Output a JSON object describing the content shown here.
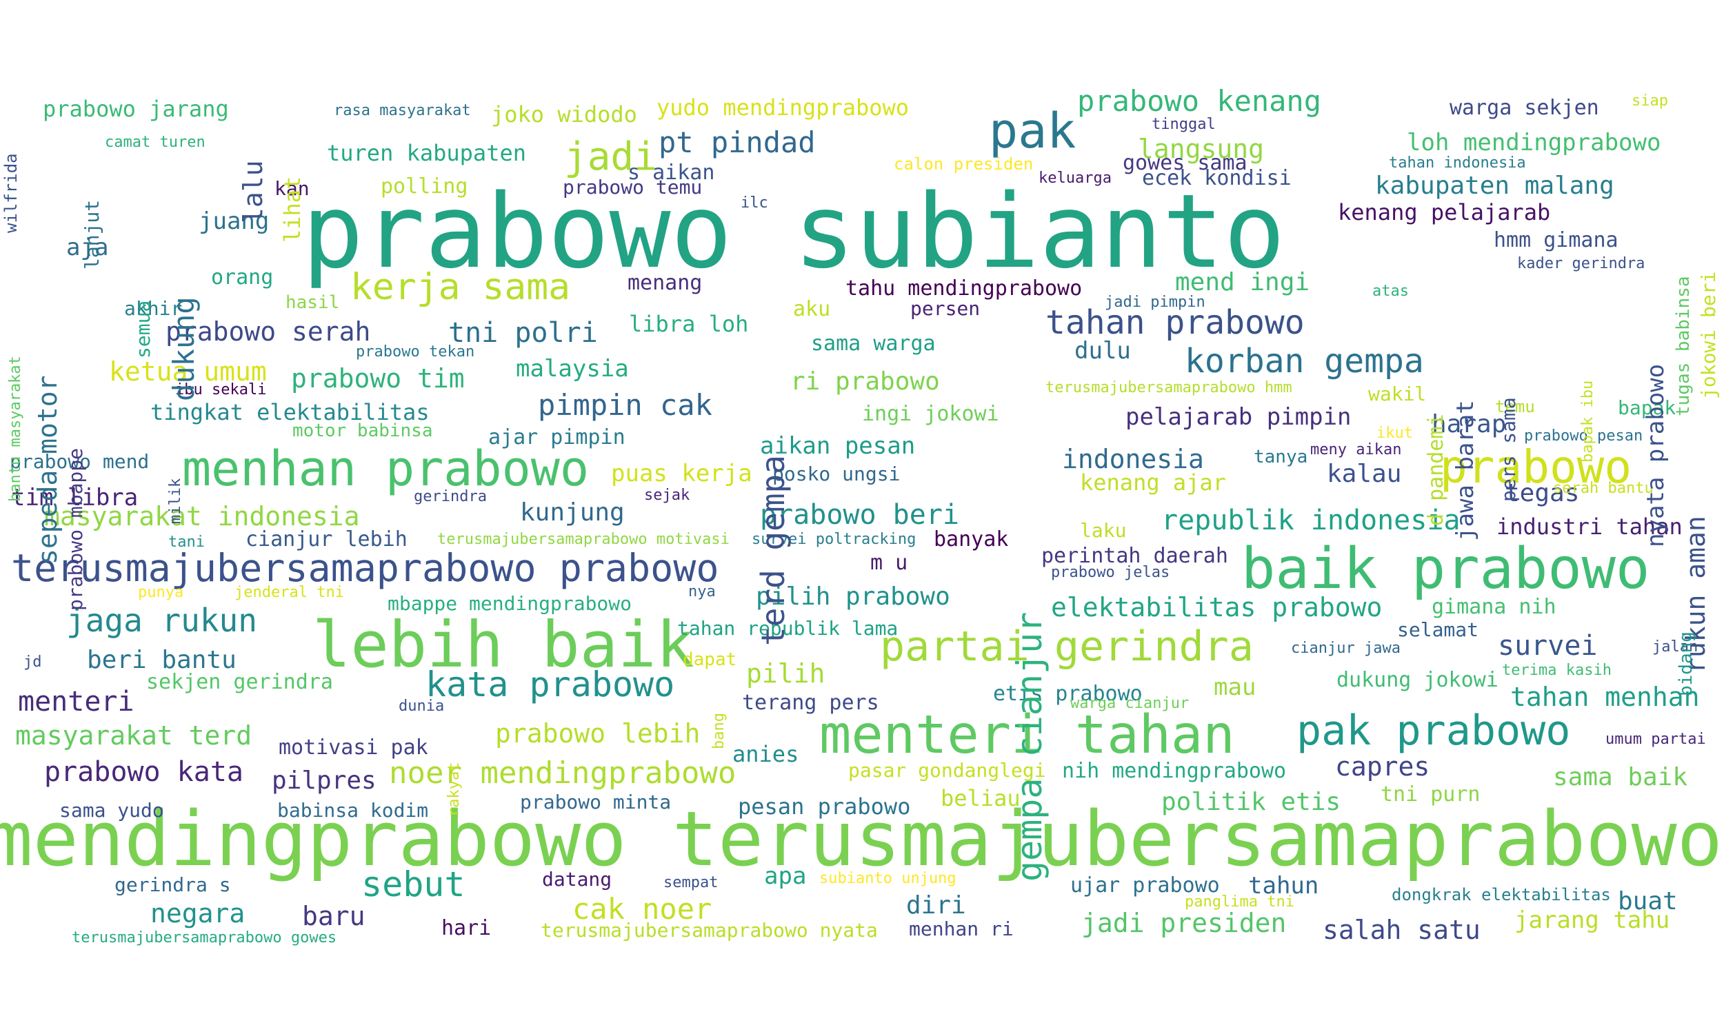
{
  "words": [
    {
      "text": "prabowo subianto",
      "color": "#22a384"
    },
    {
      "text": "mendingprabowo terusmajubersamaprabowo",
      "color": "#7ad151"
    },
    {
      "text": "baik prabowo",
      "color": "#3fbc73"
    },
    {
      "text": "lebih baik",
      "color": "#6ccd5a"
    },
    {
      "text": "menteri tahan",
      "color": "#5ec962"
    },
    {
      "text": "menhan prabowo",
      "color": "#4ac16d"
    },
    {
      "text": "terusmajubersamaprabowo prabowo",
      "color": "#3b528b"
    },
    {
      "text": "partai gerindra",
      "color": "#a0da39"
    },
    {
      "text": "pak prabowo",
      "color": "#1f988b"
    },
    {
      "text": "prabowo",
      "color": "#d0e11c"
    },
    {
      "text": "pak",
      "color": "#2a788e"
    },
    {
      "text": "kata prabowo",
      "color": "#21918c"
    },
    {
      "text": "kerja sama",
      "color": "#b5de2b"
    },
    {
      "text": "korban gempa",
      "color": "#2c728e"
    },
    {
      "text": "tahan prabowo",
      "color": "#3b528b"
    },
    {
      "text": "jaga rukun",
      "color": "#23898e"
    },
    {
      "text": "jadi",
      "color": "#a8db34"
    },
    {
      "text": "prabowo kenang",
      "color": "#35b779"
    },
    {
      "text": "pt pindad",
      "color": "#31688e"
    },
    {
      "text": "sebut",
      "color": "#20a486"
    },
    {
      "text": "noer mendingprabowo",
      "color": "#addc30"
    },
    {
      "text": "cak noer",
      "color": "#c2df23"
    },
    {
      "text": "republik indonesia",
      "color": "#1fa188"
    },
    {
      "text": "prabowo beri",
      "color": "#21918c"
    },
    {
      "text": "masyarakat indonesia",
      "color": "#90d743"
    },
    {
      "text": "tni polri",
      "color": "#2d708e"
    },
    {
      "text": "pimpin cak",
      "color": "#32658e"
    },
    {
      "text": "prabowo serah",
      "color": "#3e4989"
    },
    {
      "text": "langsung",
      "color": "#93d741"
    },
    {
      "text": "elektabilitas prabowo",
      "color": "#21a685"
    },
    {
      "text": "survei",
      "color": "#39568c"
    },
    {
      "text": "tahan menhan",
      "color": "#1f9e89"
    },
    {
      "text": "prabowo tim",
      "color": "#2eb37c"
    },
    {
      "text": "ketua umum",
      "color": "#d8e219"
    },
    {
      "text": "prabowo kata",
      "color": "#482878"
    },
    {
      "text": "masyarakat terd",
      "color": "#63cb5f"
    },
    {
      "text": "prabowo lebih",
      "color": "#b5de2b"
    },
    {
      "text": "jadi presiden",
      "color": "#54c568"
    },
    {
      "text": "salah satu",
      "color": "#3e4a89"
    },
    {
      "text": "capres",
      "color": "#414487"
    },
    {
      "text": "menteri",
      "color": "#472c7a"
    },
    {
      "text": "mend ingi",
      "color": "#3fbc73"
    },
    {
      "text": "kabupaten malang",
      "color": "#277f8e"
    },
    {
      "text": "loh mendingprabowo",
      "color": "#44bf70"
    },
    {
      "text": "indonesia",
      "color": "#2f6b8e"
    },
    {
      "text": "kalau",
      "color": "#3b528b"
    },
    {
      "text": "tegas",
      "color": "#3d4d8a"
    },
    {
      "text": "harap",
      "color": "#38588c"
    },
    {
      "text": "negara",
      "color": "#20928c"
    },
    {
      "text": "baru",
      "color": "#443983"
    },
    {
      "text": "pilpres",
      "color": "#46337f"
    },
    {
      "text": "diri",
      "color": "#2a768e"
    },
    {
      "text": "beri bantu",
      "color": "#2a768e"
    },
    {
      "text": "tim libra",
      "color": "#482576"
    },
    {
      "text": "kunjung",
      "color": "#31688e"
    },
    {
      "text": "buat",
      "color": "#2a788e"
    },
    {
      "text": "politik etis",
      "color": "#52c569"
    },
    {
      "text": "sama baik",
      "color": "#6ece58"
    },
    {
      "text": "jarang tahu",
      "color": "#b8de29"
    },
    {
      "text": "pilih prabowo",
      "color": "#21918c"
    },
    {
      "text": "pilih",
      "color": "#a5db36"
    },
    {
      "text": "pelajarab pimpin",
      "color": "#472f7d"
    },
    {
      "text": "aikan pesan",
      "color": "#1e9b8a"
    },
    {
      "text": "ri prabowo",
      "color": "#7fd34e"
    },
    {
      "text": "dulu",
      "color": "#2e6f8e"
    },
    {
      "text": "industri tahan",
      "color": "#482071"
    },
    {
      "text": "puas kerja",
      "color": "#d2e21b"
    },
    {
      "text": "kenang ajar",
      "color": "#c0df25"
    },
    {
      "text": "mau",
      "color": "#9bd93c"
    },
    {
      "text": "apa",
      "color": "#20a386"
    },
    {
      "text": "tahun",
      "color": "#31688e"
    },
    {
      "text": "anies",
      "color": "#228c8d"
    },
    {
      "text": "pesan prabowo",
      "color": "#2c738e"
    },
    {
      "text": "beliau",
      "color": "#b8de29"
    },
    {
      "text": "tingkat elektabilitas",
      "color": "#23898e"
    },
    {
      "text": "malaysia",
      "color": "#25ab82"
    },
    {
      "text": "libra loh",
      "color": "#27ad81"
    },
    {
      "text": "kenang pelajarab",
      "color": "#471164"
    },
    {
      "text": "warga sekjen",
      "color": "#3e4a89"
    },
    {
      "text": "hmm gimana",
      "color": "#3b528b"
    },
    {
      "text": "turen kabupaten",
      "color": "#23a983"
    },
    {
      "text": "yudo mendingprabowo",
      "color": "#d8e219"
    },
    {
      "text": "joko widodo",
      "color": "#b5de2b"
    },
    {
      "text": "prabowo jarang",
      "color": "#3aba76"
    },
    {
      "text": "etis prabowo",
      "color": "#25848e"
    },
    {
      "text": "dukung jokowi",
      "color": "#40bd72"
    },
    {
      "text": "terang pers",
      "color": "#3e4989"
    },
    {
      "text": "tahan republik lama",
      "color": "#1fa287"
    },
    {
      "text": "mbappe mendingprabowo",
      "color": "#29af7f"
    },
    {
      "text": "sekjen gerindra",
      "color": "#55c667"
    },
    {
      "text": "motivasi pak",
      "color": "#424086"
    },
    {
      "text": "pasar gondanglegi",
      "color": "#c5e021"
    },
    {
      "text": "nih mendingprabowo",
      "color": "#22a884"
    },
    {
      "text": "tni purn",
      "color": "#8ed645"
    },
    {
      "text": "ujar prabowo",
      "color": "#2d708e"
    },
    {
      "text": "gowes sama",
      "color": "#443a83"
    },
    {
      "text": "ecek kondisi",
      "color": "#3b528b"
    },
    {
      "text": "perintah daerah",
      "color": "#453781"
    },
    {
      "text": "gimana nih",
      "color": "#44bf70"
    },
    {
      "text": "selamat",
      "color": "#34618d"
    },
    {
      "text": "prabowo temu",
      "color": "#443983"
    },
    {
      "text": "s aikan",
      "color": "#3a548c"
    },
    {
      "text": "menang",
      "color": "#472e7c"
    },
    {
      "text": "tahu mendingprabowo",
      "color": "#440154"
    },
    {
      "text": "sama warga",
      "color": "#1f9e89"
    },
    {
      "text": "ingi jokowi",
      "color": "#6ece58"
    },
    {
      "text": "posko ungsi",
      "color": "#31688e"
    },
    {
      "text": "ajar pimpin",
      "color": "#297b8e"
    },
    {
      "text": "cianjur lebih",
      "color": "#37598c"
    },
    {
      "text": "datang",
      "color": "#481b6d"
    },
    {
      "text": "sama yudo",
      "color": "#3b528b"
    },
    {
      "text": "babinsa kodim",
      "color": "#2f6c8e"
    },
    {
      "text": "prabowo minta",
      "color": "#31688e"
    },
    {
      "text": "gerindra s",
      "color": "#31688e"
    },
    {
      "text": "hari",
      "color": "#471063"
    },
    {
      "text": "terusmajubersamaprabowo nyata",
      "color": "#b8de29"
    },
    {
      "text": "menhan ri",
      "color": "#414487"
    },
    {
      "text": "terusmajubersamaprabowo gowes",
      "color": "#25ab82"
    },
    {
      "text": "banyak",
      "color": "#440154"
    },
    {
      "text": "m u",
      "color": "#481c6e"
    },
    {
      "text": "orang",
      "color": "#22a785"
    },
    {
      "text": "aja",
      "color": "#2f6c8e"
    },
    {
      "text": "juang",
      "color": "#2c728e"
    },
    {
      "text": "akhir",
      "color": "#26828e"
    },
    {
      "text": "kan",
      "color": "#481668"
    },
    {
      "text": "polling",
      "color": "#b5de2b"
    },
    {
      "text": "camat turen",
      "color": "#2db27d"
    },
    {
      "text": "rasa masyarakat",
      "color": "#2d718e"
    },
    {
      "text": "calon presiden",
      "color": "#fde725"
    },
    {
      "text": "tinggal",
      "color": "#433e85"
    },
    {
      "text": "tahan indonesia",
      "color": "#287c8e"
    },
    {
      "text": "keluarga",
      "color": "#481a6c"
    },
    {
      "text": "ilc",
      "color": "#3b528b"
    },
    {
      "text": "siap",
      "color": "#c5e021"
    },
    {
      "text": "aku",
      "color": "#bddf26"
    },
    {
      "text": "persen",
      "color": "#482374"
    },
    {
      "text": "jadi pimpin",
      "color": "#31688e"
    },
    {
      "text": "atas",
      "color": "#2db27d"
    },
    {
      "text": "kader gerindra",
      "color": "#3b528b"
    },
    {
      "text": "hasil",
      "color": "#8bd646"
    },
    {
      "text": "prabowo tekan",
      "color": "#2a788e"
    },
    {
      "text": "ibu sekali",
      "color": "#440154"
    },
    {
      "text": "motor babinsa",
      "color": "#5ec962"
    },
    {
      "text": "prabowo mend",
      "color": "#2d708e"
    },
    {
      "text": "gerindra",
      "color": "#3e4a89"
    },
    {
      "text": "sejak",
      "color": "#482777"
    },
    {
      "text": "tani",
      "color": "#21918c"
    },
    {
      "text": "terusmajubersamaprabowo motivasi",
      "color": "#90d743"
    },
    {
      "text": "survei poltracking",
      "color": "#287d8e"
    },
    {
      "text": "punya",
      "color": "#fde725"
    },
    {
      "text": "jenderal tni",
      "color": "#d8e219"
    },
    {
      "text": "nya",
      "color": "#33638d"
    },
    {
      "text": "prabowo jelas",
      "color": "#3b528b"
    },
    {
      "text": "tanya",
      "color": "#29788e"
    },
    {
      "text": "meny aikan",
      "color": "#482475"
    },
    {
      "text": "ikut",
      "color": "#fde725"
    },
    {
      "text": "serah bantu",
      "color": "#c8e020"
    },
    {
      "text": "wakil",
      "color": "#bddf26"
    },
    {
      "text": "temu",
      "color": "#b5de2b"
    },
    {
      "text": "bapak",
      "color": "#35b779"
    },
    {
      "text": "prabowo pesan",
      "color": "#2c728e"
    },
    {
      "text": "laku",
      "color": "#bddf26"
    },
    {
      "text": "terusmajubersamaprabowo hmm",
      "color": "#b5de2b"
    },
    {
      "text": "jd",
      "color": "#3b528b"
    },
    {
      "text": "dapat",
      "color": "#d8e219"
    },
    {
      "text": "dunia",
      "color": "#3b528b"
    },
    {
      "text": "warga cianjur",
      "color": "#6ece58"
    },
    {
      "text": "cianjur jawa",
      "color": "#31688e"
    },
    {
      "text": "terima kasih",
      "color": "#3fbc73"
    },
    {
      "text": "jalan",
      "color": "#3b528b"
    },
    {
      "text": "umum partai",
      "color": "#482677"
    },
    {
      "text": "sempat",
      "color": "#3b528b"
    },
    {
      "text": "subianto unjung",
      "color": "#fde725"
    },
    {
      "text": "panglima tni",
      "color": "#c8e020"
    },
    {
      "text": "dongkrak elektabilitas",
      "color": "#277f8e"
    },
    {
      "text": "gempa cianjur",
      "color": "#2db27d"
    },
    {
      "text": "terd gempa",
      "color": "#3b528b"
    },
    {
      "text": "dukung",
      "color": "#2c728e"
    },
    {
      "text": "sepeda motor",
      "color": "#2c728e"
    },
    {
      "text": "lalu",
      "color": "#3b528b"
    },
    {
      "text": "lihat",
      "color": "#c5e021"
    },
    {
      "text": "lanjut",
      "color": "#2c728e"
    },
    {
      "text": "semua",
      "color": "#22a785"
    },
    {
      "text": "prabowo mbappe",
      "color": "#443983"
    },
    {
      "text": "bantu masyarakat",
      "color": "#5ec962"
    },
    {
      "text": "wilfrida",
      "color": "#3b528b"
    },
    {
      "text": "milik",
      "color": "#3b528b"
    },
    {
      "text": "rakyat",
      "color": "#c8e020"
    },
    {
      "text": "bang",
      "color": "#c5e021"
    },
    {
      "text": "jawa barat",
      "color": "#3b528b"
    },
    {
      "text": "pers sama",
      "color": "#3b528b"
    },
    {
      "text": "d pandemi",
      "color": "#b5de2b"
    },
    {
      "text": "bapak ibu",
      "color": "#c5e021"
    },
    {
      "text": "nyata prabowo",
      "color": "#3b528b"
    },
    {
      "text": "tugas babinsa",
      "color": "#5ec962"
    },
    {
      "text": "jokowi beri",
      "color": "#c5e021"
    },
    {
      "text": "rukun aman",
      "color": "#3b528b"
    },
    {
      "text": "bidang",
      "color": "#1f988b"
    }
  ]
}
